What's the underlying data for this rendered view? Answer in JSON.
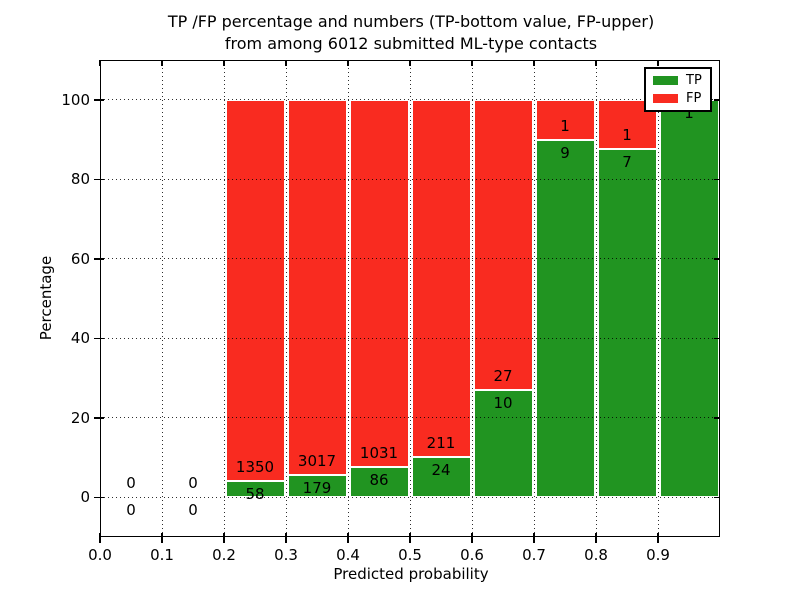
{
  "title": {
    "line1": "TP /FP percentage and numbers (TP-bottom value, FP-upper)",
    "line2": "from among 6012 submitted ML-type contacts"
  },
  "chart_data": {
    "type": "bar",
    "stacked": true,
    "title": "TP /FP percentage and numbers (TP-bottom value, FP-upper) from among 6012 submitted ML-type contacts",
    "xlabel": "Predicted probability",
    "ylabel": "Percentage",
    "total_contacts": 6012,
    "xlim": [
      0.0,
      1.0
    ],
    "ylim": [
      -10,
      110
    ],
    "xticks": [
      0.0,
      0.1,
      0.2,
      0.3,
      0.4,
      0.5,
      0.6,
      0.7,
      0.8,
      0.9
    ],
    "xtick_labels": [
      "0.0",
      "0.1",
      "0.2",
      "0.3",
      "0.4",
      "0.5",
      "0.6",
      "0.7",
      "0.8",
      "0.9"
    ],
    "yticks": [
      0,
      20,
      40,
      60,
      80,
      100
    ],
    "ytick_labels": [
      "0",
      "20",
      "40",
      "60",
      "80",
      "100"
    ],
    "xgrid": [
      0.1,
      0.2,
      0.3,
      0.4,
      0.5,
      0.6,
      0.7,
      0.8,
      0.9
    ],
    "grid_style": "dotted",
    "grid_above_bars": true,
    "colors": {
      "tp": "#219421",
      "fp": "#f92b20",
      "bar_edge": "#ffffff",
      "grid": "#000000"
    },
    "legend": {
      "position": "upper-right",
      "entries": [
        {
          "label": "TP",
          "color": "#219421"
        },
        {
          "label": "FP",
          "color": "#f92b20"
        }
      ]
    },
    "bins": [
      {
        "range": [
          0.0,
          0.1
        ],
        "tp": 0,
        "fp": 0,
        "tp_pct": 0,
        "has_bar": false
      },
      {
        "range": [
          0.1,
          0.2
        ],
        "tp": 0,
        "fp": 0,
        "tp_pct": 0,
        "has_bar": false
      },
      {
        "range": [
          0.2,
          0.3
        ],
        "tp": 58,
        "fp": 1350,
        "tp_pct": 4.12,
        "has_bar": true
      },
      {
        "range": [
          0.3,
          0.4
        ],
        "tp": 179,
        "fp": 3017,
        "tp_pct": 5.6,
        "has_bar": true
      },
      {
        "range": [
          0.4,
          0.5
        ],
        "tp": 86,
        "fp": 1031,
        "tp_pct": 7.7,
        "has_bar": true
      },
      {
        "range": [
          0.5,
          0.6
        ],
        "tp": 24,
        "fp": 211,
        "tp_pct": 10.21,
        "has_bar": true
      },
      {
        "range": [
          0.6,
          0.7
        ],
        "tp": 10,
        "fp": 27,
        "tp_pct": 27.03,
        "has_bar": true
      },
      {
        "range": [
          0.7,
          0.8
        ],
        "tp": 9,
        "fp": 1,
        "tp_pct": 90.0,
        "has_bar": true
      },
      {
        "range": [
          0.8,
          0.9
        ],
        "tp": 7,
        "fp": 1,
        "tp_pct": 87.5,
        "has_bar": true
      },
      {
        "range": [
          0.9,
          1.0
        ],
        "tp": 1,
        "fp": 0,
        "tp_pct": 100.0,
        "has_bar": true
      }
    ]
  }
}
